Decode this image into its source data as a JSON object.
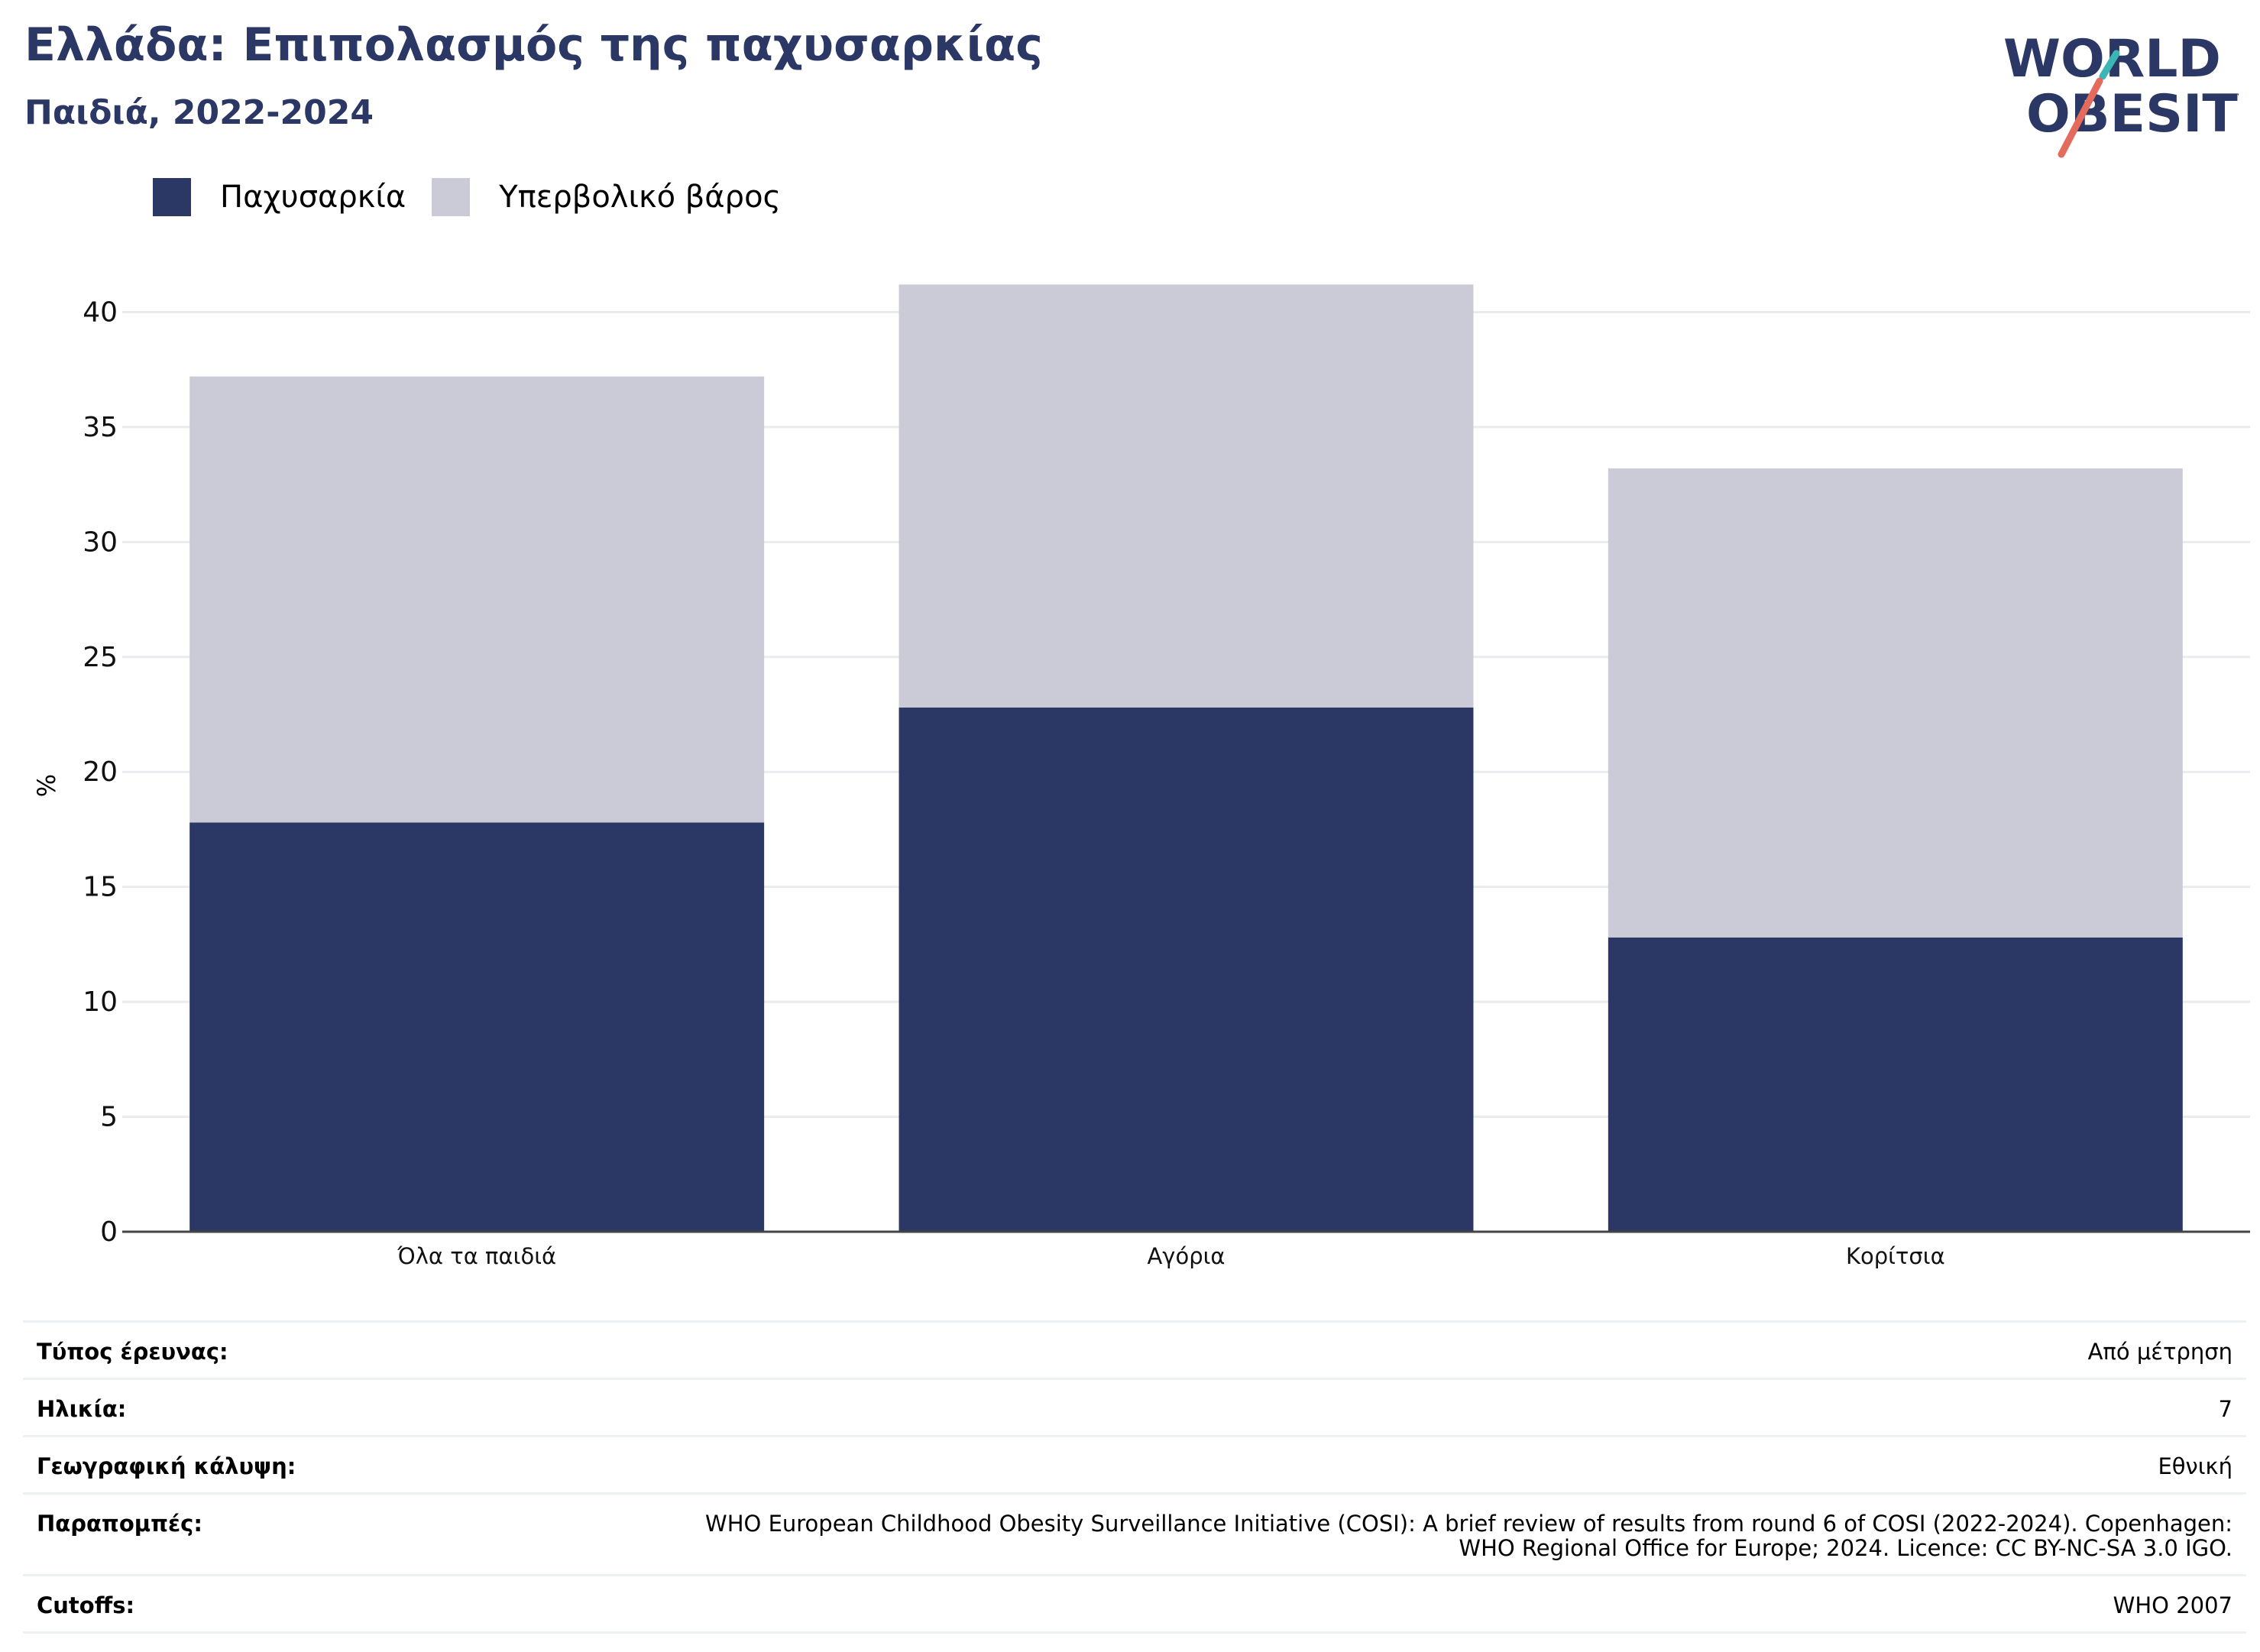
{
  "header": {
    "title": "Ελλάδα: Επιπολασμός της παχυσαρκίας",
    "subtitle": "Παιδιά, 2022-2024"
  },
  "logo": {
    "line1": "WORLD",
    "line2": "OBESITY",
    "icon": "world-obesity-logo"
  },
  "colors": {
    "obesity": "#2b3764",
    "overweight": "#cacbd7",
    "grid": "#e9ebee",
    "axis": "#444444",
    "accent_teal": "#3bb5b5",
    "accent_red": "#e46b5b"
  },
  "chart_data": {
    "type": "bar",
    "stacked": true,
    "categories": [
      "Όλα τα παιδιά",
      "Αγόρια",
      "Κορίτσια"
    ],
    "series": [
      {
        "name": "Παχυσαρκία",
        "values": [
          17.8,
          22.8,
          12.8
        ]
      },
      {
        "name": "Υπερβολικό βάρος",
        "values": [
          19.4,
          18.4,
          20.4
        ]
      }
    ],
    "title": "",
    "xlabel": "",
    "ylabel": "%",
    "ylim": [
      0,
      45
    ],
    "yticks": [
      0,
      5,
      10,
      15,
      20,
      25,
      30,
      35,
      40
    ],
    "grid": true,
    "legend": "top-left"
  },
  "info": [
    {
      "label": "Τύπος έρευνας:",
      "value": "Από μέτρηση"
    },
    {
      "label": "Ηλικία:",
      "value": "7"
    },
    {
      "label": "Γεωγραφική κάλυψη:",
      "value": "Εθνική"
    },
    {
      "label": "Παραπομπές:",
      "value": "WHO European Childhood Obesity Surveillance Initiative (COSI): A brief review of results from round 6 of COSI (2022-2024). Copenhagen:\nWHO Regional Office for Europe; 2024. Licence: CC BY-NC-SA 3.0 IGO."
    },
    {
      "label": "Cutoffs:",
      "value": "WHO 2007"
    }
  ]
}
